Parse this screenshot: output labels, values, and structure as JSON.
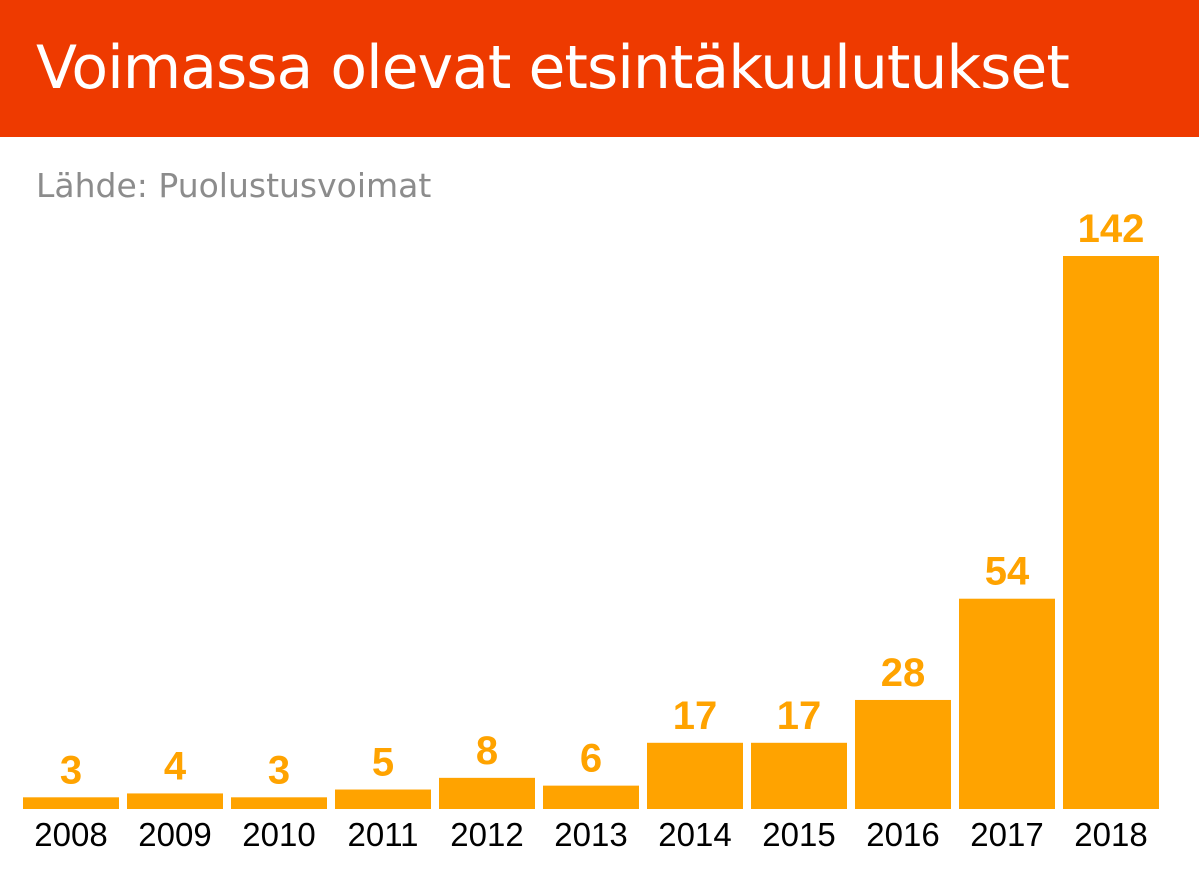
{
  "header": {
    "title": "Voimassa olevat etsintäkuulutukset",
    "background": "#ee3a00",
    "text_color": "#ffffff"
  },
  "source": "Lähde: Puolustusvoimat",
  "chart_data": {
    "type": "bar",
    "title": "Voimassa olevat etsintäkuulutukset",
    "subtitle": "Lähde: Puolustusvoimat",
    "categories": [
      "2008",
      "2009",
      "2010",
      "2011",
      "2012",
      "2013",
      "2014",
      "2015",
      "2016",
      "2017",
      "2018"
    ],
    "values": [
      3,
      4,
      3,
      5,
      8,
      6,
      17,
      17,
      28,
      54,
      142
    ],
    "data_labels": [
      "3",
      "4",
      "3",
      "5",
      "8",
      "6",
      "17",
      "17",
      "28",
      "54",
      "142"
    ],
    "bar_color": "#ffa300",
    "label_color": "#ffa300",
    "xlabel": "",
    "ylabel": "",
    "ylim": [
      0,
      142
    ],
    "grid": false,
    "legend": "none"
  }
}
